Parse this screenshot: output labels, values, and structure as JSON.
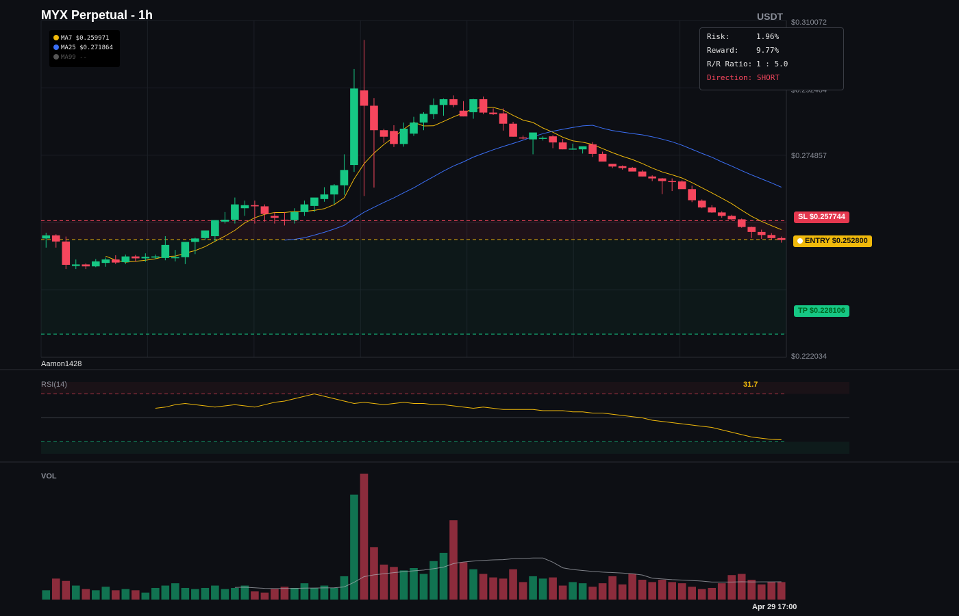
{
  "header": {
    "title": "MYX Perpetual - 1h",
    "currency": "USDT"
  },
  "legend": {
    "items": [
      {
        "label": "MA7 $0.259971",
        "color": "#f0b90b"
      },
      {
        "label": "MA25 $0.271864",
        "color": "#3b6ff5"
      },
      {
        "label": "MA99 --",
        "color": "#555555"
      }
    ]
  },
  "risk_panel": {
    "risk_label": "Risk:",
    "risk_value": "1.96%",
    "reward_label": "Reward:",
    "reward_value": "9.77%",
    "ratio_label": "R/R Ratio:",
    "ratio_value": "1 : 5.0",
    "direction_label": "Direction:",
    "direction_value": "SHORT"
  },
  "levels": {
    "sl_label": "SL $0.257744",
    "entry_label": "ENTRY $0.252800",
    "tp_label": "TP $0.228106"
  },
  "watermark": "Aamon1428",
  "time_label": "Apr 29 17:00",
  "colors": {
    "up": "#16c784",
    "down": "#f6465d",
    "ma7": "#f0b90b",
    "ma25": "#3b6ff5",
    "entry": "#f0b90b"
  },
  "chart_data": [
    {
      "type": "candlestick",
      "title": "MYX Perpetual - 1h",
      "yaxis_ticks": [
        "$0.310072",
        "$0.292464",
        "$0.274857",
        "$0.222034"
      ],
      "ylim": [
        0.222034,
        0.310072
      ],
      "levels": {
        "sl": 0.257744,
        "entry": 0.2528,
        "tp": 0.228106
      },
      "series": [
        {
          "name": "OHLC",
          "values": [
            [
              0.2531,
              0.2546,
              0.2507,
              0.2539
            ],
            [
              0.2539,
              0.2542,
              0.2507,
              0.2523
            ],
            [
              0.2523,
              0.2536,
              0.2451,
              0.2462
            ],
            [
              0.2459,
              0.2476,
              0.2451,
              0.2463
            ],
            [
              0.2463,
              0.2466,
              0.2451,
              0.2458
            ],
            [
              0.2458,
              0.2477,
              0.2456,
              0.2471
            ],
            [
              0.2467,
              0.2481,
              0.2457,
              0.2476
            ],
            [
              0.2476,
              0.2487,
              0.2464,
              0.2468
            ],
            [
              0.2469,
              0.2489,
              0.2464,
              0.2484
            ],
            [
              0.2484,
              0.2488,
              0.247,
              0.2479
            ],
            [
              0.2479,
              0.2492,
              0.247,
              0.2483
            ],
            [
              0.2481,
              0.2489,
              0.2477,
              0.2484
            ],
            [
              0.248,
              0.2537,
              0.2474,
              0.2514
            ],
            [
              0.248,
              0.2501,
              0.2471,
              0.2482
            ],
            [
              0.2482,
              0.2521,
              0.2464,
              0.2522
            ],
            [
              0.2522,
              0.2533,
              0.249,
              0.2531
            ],
            [
              0.2532,
              0.2549,
              0.2527,
              0.2552
            ],
            [
              0.2537,
              0.2578,
              0.2524,
              0.2579
            ],
            [
              0.2575,
              0.26,
              0.257,
              0.258
            ],
            [
              0.258,
              0.2638,
              0.257,
              0.262
            ],
            [
              0.261,
              0.263,
              0.259,
              0.2618
            ],
            [
              0.2618,
              0.263,
              0.257,
              0.2615
            ],
            [
              0.2615,
              0.262,
              0.2575,
              0.2595
            ],
            [
              0.259,
              0.26,
              0.257,
              0.2585
            ],
            [
              0.258,
              0.26,
              0.2565,
              0.2578
            ],
            [
              0.2579,
              0.261,
              0.257,
              0.26
            ],
            [
              0.26,
              0.263,
              0.259,
              0.262
            ],
            [
              0.2616,
              0.2626,
              0.26,
              0.2638
            ],
            [
              0.2634,
              0.2665,
              0.2627,
              0.2646
            ],
            [
              0.2646,
              0.2673,
              0.2621,
              0.267
            ],
            [
              0.267,
              0.2751,
              0.2645,
              0.271
            ],
            [
              0.2723,
              0.2974,
              0.2705,
              0.2923
            ],
            [
              0.2918,
              0.305,
              0.2642,
              0.2878
            ],
            [
              0.2878,
              0.2898,
              0.2664,
              0.2814
            ],
            [
              0.2814,
              0.2818,
              0.2781,
              0.2797
            ],
            [
              0.2812,
              0.2827,
              0.277,
              0.2778
            ],
            [
              0.2778,
              0.2834,
              0.2771,
              0.2818
            ],
            [
              0.2805,
              0.2849,
              0.2799,
              0.2834
            ],
            [
              0.2834,
              0.2861,
              0.2814,
              0.2857
            ],
            [
              0.2856,
              0.2897,
              0.2843,
              0.288
            ],
            [
              0.288,
              0.2897,
              0.2852,
              0.2895
            ],
            [
              0.2895,
              0.2905,
              0.2874,
              0.288
            ],
            [
              0.2865,
              0.289,
              0.285,
              0.285
            ],
            [
              0.2861,
              0.2896,
              0.2844,
              0.2895
            ],
            [
              0.2895,
              0.2902,
              0.2856,
              0.286
            ],
            [
              0.286,
              0.2871,
              0.2854,
              0.2856
            ],
            [
              0.2858,
              0.2871,
              0.2813,
              0.2831
            ],
            [
              0.2831,
              0.2836,
              0.2797,
              0.2797
            ],
            [
              0.2795,
              0.28,
              0.279,
              0.2793
            ],
            [
              0.279,
              0.28,
              0.2751,
              0.2808
            ],
            [
              0.2792,
              0.2798,
              0.2787,
              0.2794
            ],
            [
              0.2798,
              0.2801,
              0.2767,
              0.2782
            ],
            [
              0.2782,
              0.2791,
              0.2764,
              0.2764
            ],
            [
              0.2766,
              0.2779,
              0.2763,
              0.2766
            ],
            [
              0.2764,
              0.2769,
              0.2753,
              0.2772
            ],
            [
              0.2777,
              0.2783,
              0.2744,
              0.2752
            ],
            [
              0.2752,
              0.2758,
              0.2736,
              0.2732
            ],
            [
              0.2726,
              0.2722,
              0.2715,
              0.2719
            ],
            [
              0.272,
              0.2722,
              0.2711,
              0.2715
            ],
            [
              0.2716,
              0.2718,
              0.2711,
              0.2706
            ],
            [
              0.2706,
              0.271,
              0.2693,
              0.2693
            ],
            [
              0.2693,
              0.2696,
              0.2681,
              0.2688
            ],
            [
              0.2688,
              0.2689,
              0.2647,
              0.2681
            ],
            [
              0.2681,
              0.2688,
              0.2655,
              0.268
            ],
            [
              0.268,
              0.2683,
              0.2671,
              0.266
            ],
            [
              0.266,
              0.2669,
              0.2626,
              0.2631
            ],
            [
              0.263,
              0.2633,
              0.261,
              0.2612
            ],
            [
              0.2612,
              0.2618,
              0.2598,
              0.2599
            ],
            [
              0.2599,
              0.2602,
              0.2585,
              0.259
            ],
            [
              0.259,
              0.2593,
              0.258,
              0.2581
            ],
            [
              0.2581,
              0.2583,
              0.2559,
              0.2561
            ],
            [
              0.2561,
              0.2562,
              0.2532,
              0.2548
            ],
            [
              0.2548,
              0.2554,
              0.253,
              0.254
            ],
            [
              0.254,
              0.2545,
              0.2528,
              0.2532
            ],
            [
              0.2532,
              0.2536,
              0.252,
              0.2527
            ]
          ]
        },
        {
          "name": "Volume",
          "values": [
            8,
            18,
            16,
            12,
            9,
            8,
            11,
            8,
            9,
            8,
            6,
            10,
            12,
            14,
            10,
            9,
            10,
            12,
            9,
            10,
            12,
            7,
            6,
            9,
            11,
            10,
            14,
            10,
            12,
            10,
            20,
            90,
            108,
            45,
            30,
            28,
            25,
            27,
            22,
            33,
            40,
            68,
            32,
            26,
            22,
            19,
            18,
            26,
            15,
            20,
            18,
            19,
            12,
            15,
            14,
            11,
            14,
            20,
            13,
            22,
            17,
            15,
            17,
            15,
            14,
            11,
            9,
            10,
            14,
            21,
            22,
            17,
            13,
            15,
            15
          ]
        },
        {
          "name": "RSI(14)",
          "last": 31.7,
          "values": [
            58,
            59,
            61,
            62,
            61,
            60,
            59,
            60,
            61,
            60,
            59,
            61,
            63,
            64,
            66,
            68,
            70,
            68,
            66,
            64,
            62,
            63,
            62,
            61,
            62,
            63,
            62,
            62,
            61,
            61,
            60,
            59,
            58,
            59,
            58,
            57,
            57,
            57,
            57,
            56,
            56,
            56,
            55,
            55,
            54,
            54,
            53,
            52,
            51,
            50,
            48,
            47,
            46,
            45,
            44,
            43,
            42,
            40,
            38,
            36,
            34,
            33,
            32,
            31.7
          ]
        }
      ]
    }
  ]
}
